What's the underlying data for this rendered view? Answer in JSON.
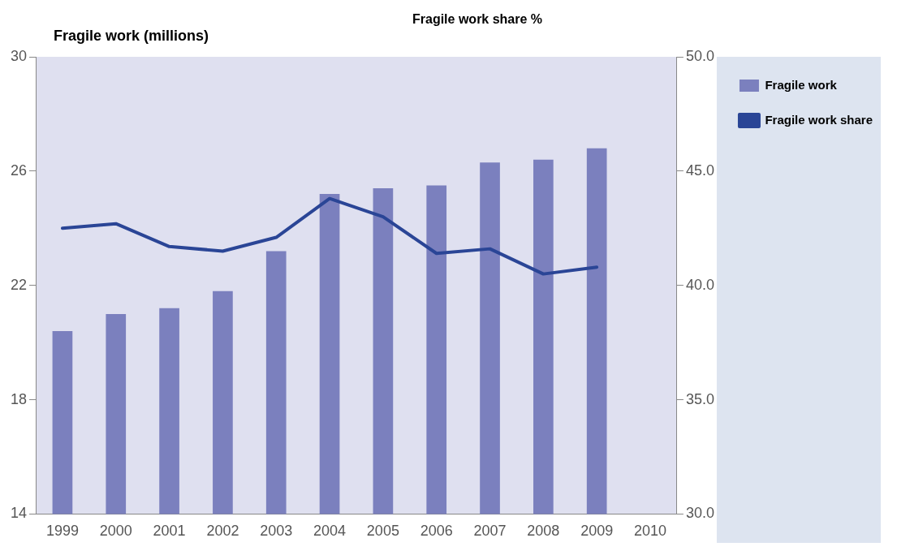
{
  "chart_data": {
    "type": "bar",
    "ylabel": "Fragile work (millions)",
    "y2label": "Fragile work share %",
    "categories": [
      "1999",
      "2000",
      "2001",
      "2002",
      "2003",
      "2004",
      "2005",
      "2006",
      "2007",
      "2008",
      "2009",
      "2010"
    ],
    "series": [
      {
        "name": "Fragile work",
        "color": "#7b80be",
        "values": [
          20.4,
          21.0,
          21.2,
          21.8,
          23.2,
          25.2,
          25.4,
          25.5,
          26.3,
          26.4,
          26.8,
          null
        ]
      },
      {
        "name": "Fragile work share",
        "type": "line",
        "axis": "y2",
        "color": "#2a4596",
        "values": [
          42.5,
          42.7,
          41.7,
          41.5,
          42.1,
          43.8,
          43.0,
          41.4,
          41.6,
          40.5,
          40.8,
          null
        ]
      }
    ],
    "ylim": [
      14,
      30
    ],
    "yticks": [
      14,
      18,
      22,
      26,
      30
    ],
    "y2lim": [
      30,
      50
    ],
    "y2ticks": [
      {
        "value": 30,
        "label": "30.0"
      },
      {
        "value": 35,
        "label": "35.0"
      },
      {
        "value": 40,
        "label": "40.0"
      },
      {
        "value": 45,
        "label": "45.0"
      },
      {
        "value": 50,
        "label": "50.0"
      }
    ],
    "legend": "top right",
    "marker": "none"
  }
}
